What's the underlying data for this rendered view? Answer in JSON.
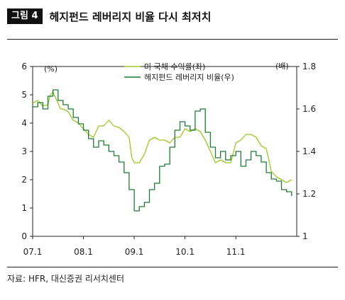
{
  "header": {
    "badge": "그림 4",
    "title": "헤지펀드 레버리지 비율 다시 최저치"
  },
  "source": "자료: HFR, 대신증권 리서치센터",
  "chart_data": {
    "type": "line",
    "title": "헤지펀드 레버리지 비율 다시 최저치",
    "left_unit": "(%)",
    "right_unit": "(배)",
    "left_ylim": [
      0,
      6
    ],
    "right_ylim": [
      1,
      1.8
    ],
    "left_ticks": [
      "0",
      "1",
      "2",
      "3",
      "4",
      "5",
      "6"
    ],
    "right_ticks": [
      "1",
      "1.2",
      "1.4",
      "1.6",
      "1.8"
    ],
    "x_ticks": [
      "07.1",
      "08.1",
      "09.1",
      "10.1",
      "11.1"
    ],
    "legend_position": "top-right",
    "colors": {
      "treasury": "#9bc822",
      "leverage": "#1e7a34"
    },
    "series": [
      {
        "name": "미 국채 수익률(좌)",
        "axis": "left",
        "x": [
          2007.0,
          2007.1,
          2007.2,
          2007.3,
          2007.35,
          2007.4,
          2007.5,
          2007.55,
          2007.6,
          2007.7,
          2007.8,
          2007.9,
          2008.0,
          2008.1,
          2008.2,
          2008.3,
          2008.4,
          2008.5,
          2008.6,
          2008.7,
          2008.8,
          2008.9,
          2008.95,
          2009.0,
          2009.1,
          2009.2,
          2009.3,
          2009.4,
          2009.5,
          2009.6,
          2009.7,
          2009.8,
          2009.9,
          2010.0,
          2010.1,
          2010.2,
          2010.3,
          2010.4,
          2010.5,
          2010.6,
          2010.7,
          2010.8,
          2010.9,
          2011.0,
          2011.1,
          2011.2,
          2011.3,
          2011.4,
          2011.5,
          2011.6,
          2011.7,
          2011.8,
          2011.9,
          2012.0,
          2012.1
        ],
        "values": [
          4.7,
          4.8,
          4.6,
          4.65,
          5.0,
          5.1,
          4.7,
          4.5,
          4.5,
          4.4,
          4.1,
          4.0,
          3.8,
          3.6,
          3.5,
          3.9,
          3.9,
          4.1,
          3.9,
          3.85,
          3.7,
          3.5,
          2.8,
          2.6,
          2.6,
          2.9,
          3.4,
          3.5,
          3.4,
          3.4,
          3.3,
          3.5,
          3.5,
          3.8,
          3.7,
          3.8,
          3.7,
          3.4,
          3.0,
          2.6,
          2.7,
          2.6,
          2.6,
          3.3,
          3.4,
          3.6,
          3.6,
          3.5,
          3.2,
          3.1,
          2.3,
          2.1,
          2.0,
          1.9,
          2.0
        ]
      },
      {
        "name": "헤지펀드 레버리지 비율(우)",
        "axis": "right",
        "x": [
          2007.0,
          2007.1,
          2007.2,
          2007.3,
          2007.4,
          2007.5,
          2007.6,
          2007.7,
          2007.8,
          2007.9,
          2008.0,
          2008.1,
          2008.2,
          2008.3,
          2008.4,
          2008.5,
          2008.6,
          2008.7,
          2008.8,
          2008.9,
          2009.0,
          2009.1,
          2009.2,
          2009.3,
          2009.4,
          2009.5,
          2009.6,
          2009.7,
          2009.8,
          2009.9,
          2010.0,
          2010.1,
          2010.2,
          2010.3,
          2010.4,
          2010.5,
          2010.6,
          2010.7,
          2010.8,
          2010.9,
          2011.0,
          2011.1,
          2011.2,
          2011.3,
          2011.4,
          2011.5,
          2011.6,
          2011.7,
          2011.8,
          2011.9,
          2012.0,
          2012.1
        ],
        "values": [
          1.61,
          1.63,
          1.6,
          1.66,
          1.69,
          1.64,
          1.62,
          1.6,
          1.56,
          1.53,
          1.5,
          1.46,
          1.42,
          1.45,
          1.43,
          1.4,
          1.38,
          1.35,
          1.3,
          1.22,
          1.12,
          1.14,
          1.16,
          1.22,
          1.25,
          1.33,
          1.34,
          1.42,
          1.5,
          1.54,
          1.52,
          1.5,
          1.59,
          1.6,
          1.49,
          1.42,
          1.37,
          1.4,
          1.36,
          1.38,
          1.4,
          1.33,
          1.36,
          1.4,
          1.38,
          1.35,
          1.3,
          1.27,
          1.26,
          1.22,
          1.21,
          1.19
        ]
      }
    ]
  }
}
